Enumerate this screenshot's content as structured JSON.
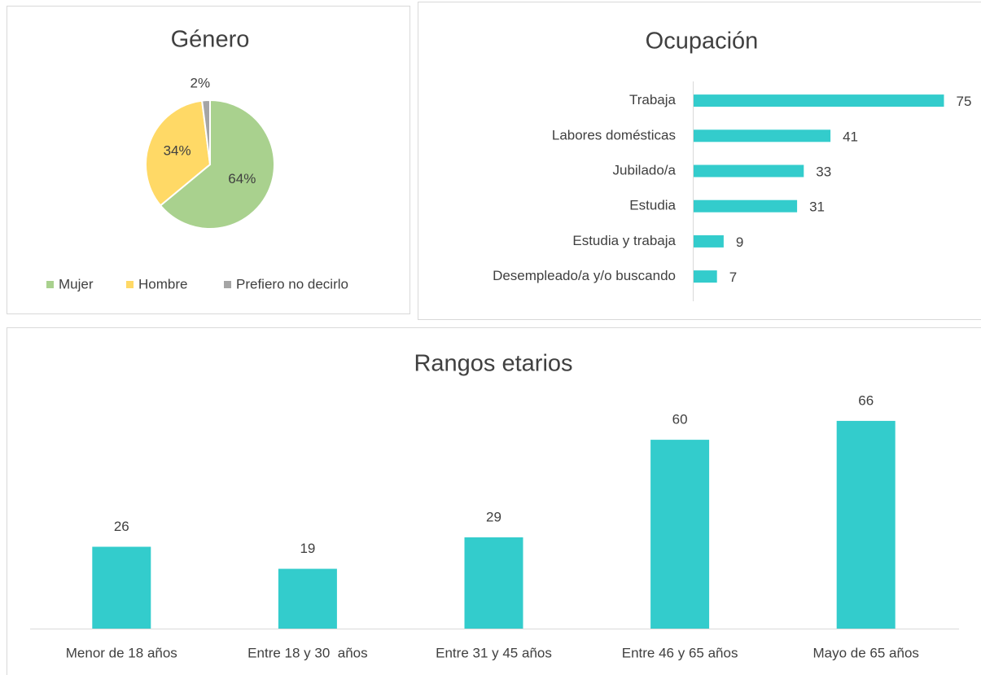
{
  "chart_data": [
    {
      "type": "pie",
      "title": "Género",
      "categories": [
        "Mujer",
        "Hombre",
        "Prefiero no decirlo"
      ],
      "values": [
        64,
        34,
        2
      ],
      "value_labels": [
        "64%",
        "34%",
        "2%"
      ],
      "colors": [
        "#a9d18e",
        "#ffd966",
        "#a5a5a5"
      ],
      "legend": "bottom"
    },
    {
      "type": "hbar",
      "title": "Ocupación",
      "categories": [
        "Trabaja",
        "Labores domésticas",
        "Jubilado/a",
        "Estudia",
        "Estudia y trabaja",
        "Desempleado/a y/o buscando"
      ],
      "values": [
        75,
        41,
        33,
        31,
        9,
        7
      ],
      "color": "#33cccc"
    },
    {
      "type": "bar",
      "title": "Rangos etarios",
      "categories": [
        "Menor de 18 años",
        "Entre 18 y 30  años",
        "Entre 31 y 45 años",
        "Entre 46 y 65 años",
        "Mayo de 65 años"
      ],
      "values": [
        26,
        19,
        29,
        60,
        66
      ],
      "color": "#33cccc"
    }
  ]
}
